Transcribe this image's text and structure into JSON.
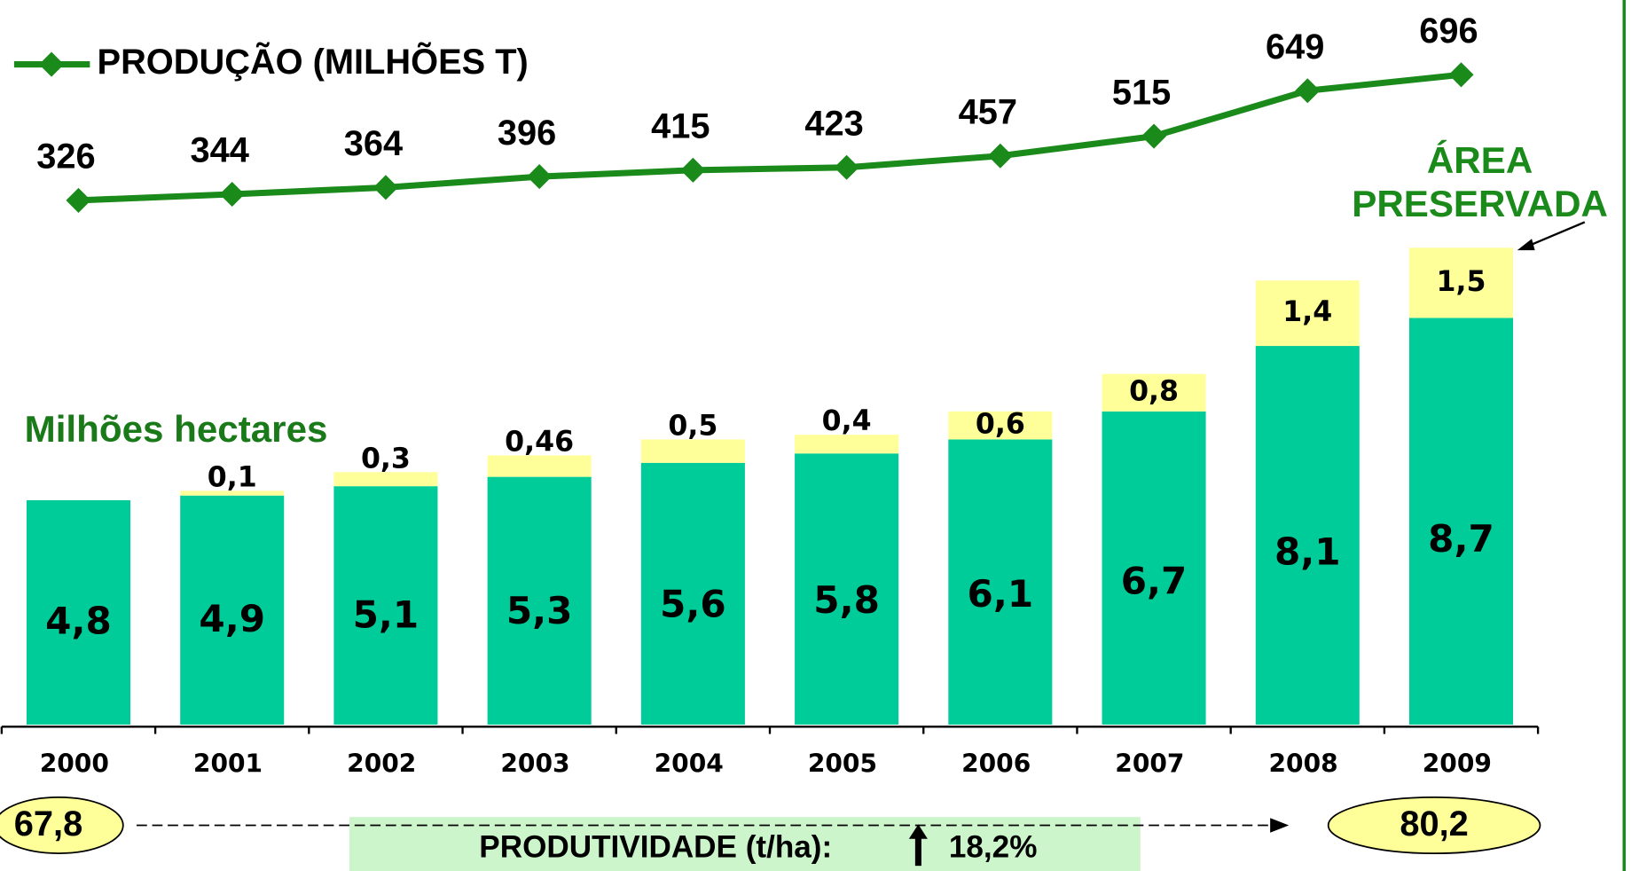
{
  "chart_data": {
    "type": "bar",
    "stacked": true,
    "categories": [
      "2000",
      "2001",
      "2002",
      "2003",
      "2004",
      "2005",
      "2006",
      "2007",
      "2008",
      "2009"
    ],
    "y_label": "Milhões hectares",
    "ylim": [
      0,
      15.5
    ],
    "series": [
      {
        "color": "#00cc99",
        "values": [
          4.8,
          4.9,
          5.1,
          5.3,
          5.6,
          5.8,
          6.1,
          6.7,
          8.1,
          8.7
        ],
        "value_labels": [
          "4,8",
          "4,9",
          "5,1",
          "5,3",
          "5,6",
          "5,8",
          "6,1",
          "6,7",
          "8,1",
          "8,7"
        ]
      },
      {
        "color": "#ffff99",
        "values": [
          null,
          0.1,
          0.3,
          0.46,
          0.5,
          0.4,
          0.6,
          0.8,
          1.4,
          1.5
        ],
        "value_labels": [
          null,
          "0,1",
          "0,3",
          "0,46",
          "0,5",
          "0,4",
          "0,6",
          "0,8",
          "1,4",
          "1,5"
        ]
      },
      {
        "name": "PRODUÇÃO (MILHÕES T)",
        "type": "line",
        "axis": "y2",
        "color": "#1a8a1a",
        "values": [
          326,
          344,
          364,
          396,
          415,
          423,
          457,
          515,
          649,
          696
        ]
      }
    ],
    "y2lim": [
      326,
      696
    ],
    "annotation": {
      "lines": [
        "ÁREA",
        "PRESERVADA"
      ]
    },
    "productivity": {
      "label": "PRODUTIVIDADE (t/ha):",
      "start": 67.8,
      "start_label": "67,8",
      "end": 80.2,
      "end_label": "80,2",
      "change": 18.2,
      "change_label": "18,2%"
    }
  }
}
